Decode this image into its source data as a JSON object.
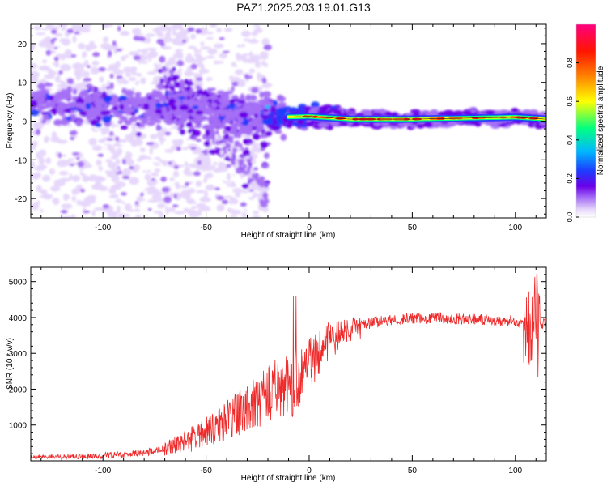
{
  "figure": {
    "title": "PAZ1.2025.203.19.01.G13"
  },
  "chart_data": [
    {
      "type": "heatmap",
      "title": "PAZ1.2025.203.19.01.G13",
      "xlabel": "Height of straight line (km)",
      "ylabel": "Frequency (Hz)",
      "xlim": [
        -135,
        115
      ],
      "ylim": [
        -25,
        25
      ],
      "x_ticks": [
        -100,
        -50,
        0,
        50,
        100
      ],
      "y_ticks": [
        -20,
        -10,
        0,
        10,
        20
      ],
      "grid": false,
      "colorbar": {
        "label": "Normalized spectral amplitude",
        "range": [
          0,
          1
        ],
        "ticks": [
          "0.0",
          "0.2",
          "0.4",
          "0.6",
          "0.8"
        ],
        "colors": [
          "#ffffff",
          "#e6d6fb",
          "#a56ff5",
          "#6a00e8",
          "#1d3cff",
          "#00b8ff",
          "#00ff80",
          "#ffff00",
          "#ff7a00",
          "#ff1500",
          "#ff007f"
        ]
      },
      "ridge": [
        {
          "x": -130,
          "y": 5
        },
        {
          "x": -110,
          "y": 4
        },
        {
          "x": -90,
          "y": 3.5
        },
        {
          "x": -70,
          "y": 4
        },
        {
          "x": -50,
          "y": 3
        },
        {
          "x": -30,
          "y": 2
        },
        {
          "x": -15,
          "y": 1
        },
        {
          "x": 0,
          "y": 1.2
        },
        {
          "x": 20,
          "y": 0.5
        },
        {
          "x": 50,
          "y": 0.5
        },
        {
          "x": 80,
          "y": 0.8
        },
        {
          "x": 100,
          "y": 1
        },
        {
          "x": 115,
          "y": 0.5
        }
      ]
    },
    {
      "type": "line",
      "xlabel": "Height of straight line (km)",
      "ylabel": "SNR (10 * v/v)",
      "xlim": [
        -135,
        115
      ],
      "ylim": [
        0,
        5400
      ],
      "x_ticks": [
        -100,
        -50,
        0,
        50,
        100
      ],
      "y_ticks": [
        1000,
        2000,
        3000,
        4000,
        5000
      ],
      "grid": false,
      "color": "#ee2a2a",
      "envelope": {
        "x": [
          -135,
          -110,
          -90,
          -75,
          -65,
          -55,
          -45,
          -35,
          -25,
          -15,
          -8,
          -3,
          2,
          8,
          15,
          22,
          30,
          40,
          60,
          80,
          100,
          106,
          110,
          115
        ],
        "y": [
          120,
          120,
          180,
          260,
          420,
          650,
          950,
          1300,
          1650,
          2050,
          2150,
          2450,
          2850,
          3250,
          3550,
          3700,
          3850,
          3950,
          3980,
          3950,
          3900,
          3750,
          3700,
          3850
        ]
      }
    }
  ]
}
